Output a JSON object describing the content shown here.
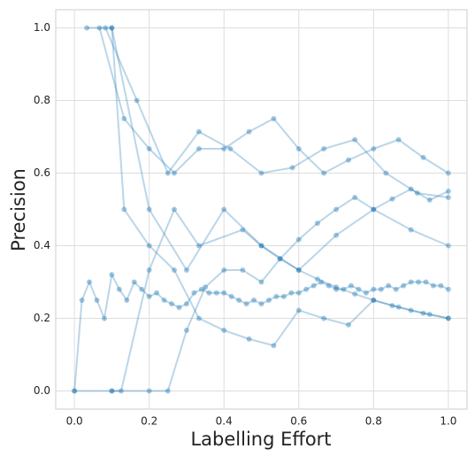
{
  "chart_data": {
    "type": "line",
    "xlabel": "Labelling Effort",
    "ylabel": "Precision",
    "xlim": [
      -0.05,
      1.05
    ],
    "ylim": [
      -0.05,
      1.05
    ],
    "xticks": [
      {
        "value": 0,
        "label": "0.0"
      },
      0.2,
      0.4,
      0.6,
      0.8,
      {
        "value": 1,
        "label": "1.0"
      }
    ],
    "yticks": [
      {
        "value": 0,
        "label": "0.0"
      },
      0.2,
      0.4,
      0.6,
      0.8,
      {
        "value": 1,
        "label": "1.0"
      }
    ],
    "grid": true,
    "color": "#1f77b4",
    "series": [
      {
        "x": [
          0.067,
          0.133,
          0.2,
          0.267,
          0.333,
          0.4,
          0.467,
          0.533,
          0.6,
          0.667,
          0.733,
          0.8,
          0.867,
          0.933,
          1.0
        ],
        "values": [
          1.0,
          0.75,
          0.667,
          0.6,
          0.667,
          0.667,
          0.714,
          0.75,
          0.667,
          0.6,
          0.636,
          0.667,
          0.692,
          0.643,
          0.6
        ]
      },
      {
        "x": [
          0.083,
          0.167,
          0.25,
          0.333,
          0.417,
          0.5,
          0.583,
          0.667,
          0.75,
          0.833,
          0.917,
          1.0
        ],
        "values": [
          1.0,
          0.8,
          0.6,
          0.714,
          0.667,
          0.6,
          0.615,
          0.667,
          0.692,
          0.6,
          0.545,
          0.533
        ]
      },
      {
        "x": [
          0.1,
          0.2,
          0.3,
          0.4,
          0.5,
          0.6,
          0.7,
          0.8,
          0.9,
          1.0
        ],
        "values": [
          1.0,
          0.5,
          0.333,
          0.5,
          0.4,
          0.333,
          0.429,
          0.5,
          0.444,
          0.4
        ]
      },
      {
        "x": [
          0.033,
          0.1,
          0.133,
          0.2,
          0.267,
          0.333,
          0.4,
          0.467,
          0.533,
          0.6,
          0.667,
          0.733,
          0.8,
          0.867,
          0.933,
          1.0
        ],
        "values": [
          1.0,
          1.0,
          0.5,
          0.4,
          0.333,
          0.2,
          0.167,
          0.143,
          0.125,
          0.222,
          0.2,
          0.182,
          0.25,
          0.231,
          0.214,
          0.2
        ]
      },
      {
        "x": [
          0.1,
          0.125,
          0.2,
          0.267,
          0.333,
          0.45,
          0.5,
          0.55,
          0.6,
          0.65,
          0.7,
          0.75,
          0.8,
          0.85,
          0.9,
          0.95,
          1.0
        ],
        "values": [
          0,
          0,
          0.333,
          0.5,
          0.4,
          0.444,
          0.4,
          0.364,
          0.333,
          0.308,
          0.286,
          0.267,
          0.25,
          0.235,
          0.222,
          0.211,
          0.2
        ]
      },
      {
        "x": [
          0.0,
          0.1,
          0.2,
          0.25,
          0.3,
          0.35,
          0.4,
          0.45,
          0.5,
          0.55,
          0.6,
          0.65,
          0.7,
          0.75,
          0.8,
          0.85,
          0.9,
          0.95,
          1.0
        ],
        "values": [
          0,
          0,
          0,
          0,
          0.167,
          0.286,
          0.333,
          0.333,
          0.3,
          0.364,
          0.417,
          0.462,
          0.5,
          0.533,
          0.5,
          0.529,
          0.556,
          0.526,
          0.55
        ]
      },
      {
        "x": [
          0,
          0.02,
          0.04,
          0.06,
          0.08,
          0.1,
          0.12,
          0.14,
          0.16,
          0.18,
          0.2,
          0.22,
          0.24,
          0.26,
          0.28,
          0.3,
          0.32,
          0.34,
          0.36,
          0.38,
          0.4,
          0.42,
          0.44,
          0.46,
          0.48,
          0.5,
          0.52,
          0.54,
          0.56,
          0.58,
          0.6,
          0.62,
          0.64,
          0.66,
          0.68,
          0.7,
          0.72,
          0.74,
          0.76,
          0.78,
          0.8,
          0.82,
          0.84,
          0.86,
          0.88,
          0.9,
          0.92,
          0.94,
          0.96,
          0.98,
          1.0
        ],
        "values": [
          0,
          0.25,
          0.3,
          0.25,
          0.2,
          0.32,
          0.28,
          0.25,
          0.3,
          0.28,
          0.26,
          0.27,
          0.25,
          0.24,
          0.23,
          0.24,
          0.27,
          0.28,
          0.27,
          0.27,
          0.27,
          0.26,
          0.25,
          0.24,
          0.25,
          0.24,
          0.25,
          0.26,
          0.26,
          0.27,
          0.27,
          0.28,
          0.29,
          0.3,
          0.29,
          0.28,
          0.28,
          0.29,
          0.28,
          0.27,
          0.28,
          0.28,
          0.29,
          0.28,
          0.29,
          0.3,
          0.3,
          0.3,
          0.29,
          0.29,
          0.28
        ]
      }
    ]
  }
}
